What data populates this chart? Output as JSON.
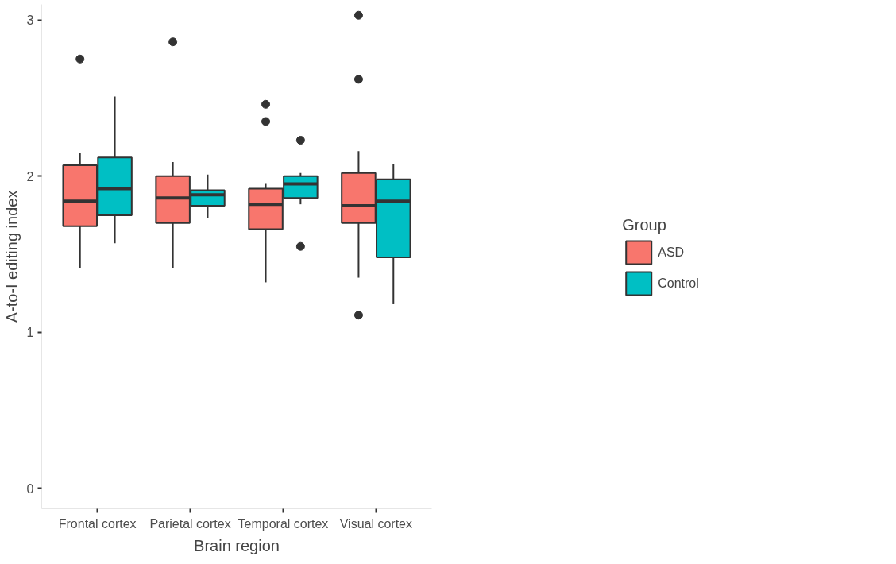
{
  "chart_data": {
    "type": "box",
    "xlabel": "Brain region",
    "ylabel": "A-to-I editing index",
    "legend_title": "Group",
    "legend": "right",
    "grid": false,
    "categories": [
      "Frontal cortex",
      "Parietal cortex",
      "Temporal cortex",
      "Visual cortex"
    ],
    "ylim": [
      -0.13,
      3.1
    ],
    "yticks": [
      0,
      1,
      2,
      3
    ],
    "series": [
      {
        "name": "ASD",
        "color": "#f8766d",
        "boxes": [
          {
            "low": 1.41,
            "q1": 1.68,
            "median": 1.84,
            "q3": 2.07,
            "high": 2.15,
            "outliers": [
              2.75
            ]
          },
          {
            "low": 1.41,
            "q1": 1.7,
            "median": 1.86,
            "q3": 2.0,
            "high": 2.09,
            "outliers": [
              2.86
            ]
          },
          {
            "low": 1.32,
            "q1": 1.66,
            "median": 1.82,
            "q3": 1.92,
            "high": 1.95,
            "outliers": [
              2.46,
              2.35
            ]
          },
          {
            "low": 1.35,
            "q1": 1.7,
            "median": 1.81,
            "q3": 2.02,
            "high": 2.16,
            "outliers": [
              3.03,
              2.62,
              1.11
            ]
          }
        ]
      },
      {
        "name": "Control",
        "color": "#00bfc4",
        "boxes": [
          {
            "low": 1.57,
            "q1": 1.75,
            "median": 1.92,
            "q3": 2.12,
            "high": 2.51
          },
          {
            "low": 1.73,
            "q1": 1.81,
            "median": 1.88,
            "q3": 1.91,
            "high": 2.01
          },
          {
            "low": 1.82,
            "q1": 1.86,
            "median": 1.95,
            "q3": 2.0,
            "high": 2.02,
            "outliers": [
              2.23,
              1.55
            ]
          },
          {
            "low": 1.18,
            "q1": 1.48,
            "median": 1.84,
            "q3": 1.98,
            "high": 2.08
          }
        ]
      }
    ]
  }
}
